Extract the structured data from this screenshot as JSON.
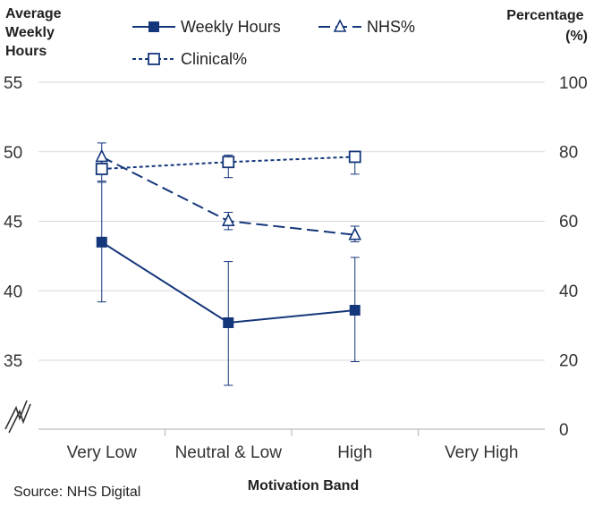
{
  "chart_data": {
    "type": "line",
    "title": "",
    "xlabel": "Motivation Band",
    "ylabel_left": [
      "Average",
      "Weekly",
      "Hours"
    ],
    "ylabel_right": [
      "Percentage",
      "(%)"
    ],
    "source": "Source: NHS Digital",
    "categories": [
      "Very Low",
      "Neutral & Low",
      "High",
      "Very High"
    ],
    "y_left": {
      "ticks": [
        35,
        40,
        45,
        50,
        55
      ],
      "range": [
        30,
        55
      ],
      "axis_break": true
    },
    "y_right": {
      "ticks": [
        0,
        20,
        40,
        60,
        80,
        100
      ],
      "range": [
        0,
        100
      ]
    },
    "grid": true,
    "legend_position": "top",
    "series": [
      {
        "name": "Weekly Hours",
        "axis": "left",
        "style": "solid",
        "marker": "filled-square",
        "color": "#14367a",
        "values": [
          43.5,
          37.7,
          38.6,
          null
        ],
        "error_low": [
          39.2,
          33.2,
          34.9,
          null
        ],
        "error_high": [
          47.8,
          42.1,
          42.4,
          null
        ]
      },
      {
        "name": "NHS%",
        "axis": "right",
        "style": "dashed",
        "marker": "open-triangle",
        "color": "#14367a",
        "values": [
          78.5,
          60.0,
          56.0,
          null
        ],
        "error_low": [
          75.5,
          57.5,
          54.0,
          null
        ],
        "error_high": [
          82.5,
          62.5,
          58.5,
          null
        ]
      },
      {
        "name": "Clinical%",
        "axis": "right",
        "style": "dotted",
        "marker": "open-square",
        "color": "#14367a",
        "values": [
          75.0,
          77.0,
          78.5,
          null
        ],
        "error_low": [
          71.5,
          72.5,
          73.5,
          null
        ],
        "error_high": [
          77.5,
          79.0,
          80.0,
          null
        ]
      }
    ]
  }
}
